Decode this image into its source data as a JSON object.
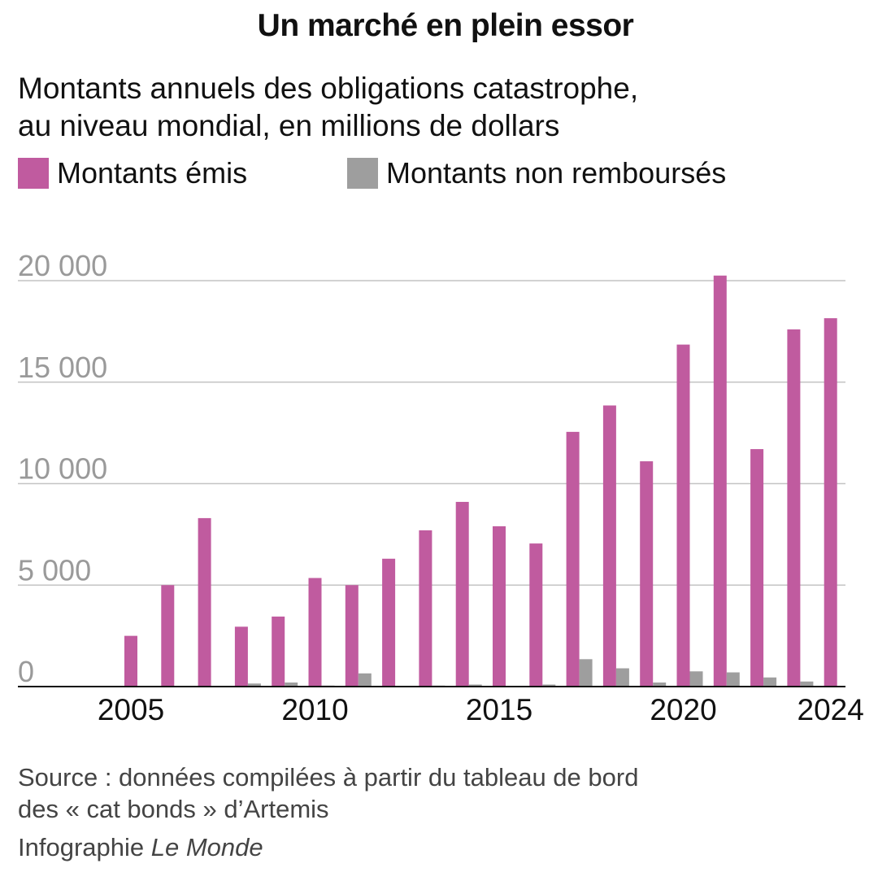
{
  "title": "Un marché en plein essor",
  "subtitle_line1": "Montants annuels des obligations catastrophe,",
  "subtitle_line2": "au niveau mondial, en millions de dollars",
  "source_line1": "Source : données compilées à partir du tableau de bord",
  "source_line2": "des « cat bonds » d’Artemis",
  "credit_prefix": "Infographie",
  "credit_brand": "Le Monde",
  "colors": {
    "issued": "#c05b9f",
    "outstanding": "#9e9e9e",
    "grid": "#c4c4c4",
    "axis": "#111111",
    "ytick": "#9a9a9a"
  },
  "chart_data": {
    "type": "bar",
    "categories": [
      "2004",
      "2005",
      "2006",
      "2007",
      "2008",
      "2009",
      "2010",
      "2011",
      "2012",
      "2013",
      "2014",
      "2015",
      "2016",
      "2017",
      "2018",
      "2019",
      "2020",
      "2021",
      "2022",
      "2023",
      "2024"
    ],
    "x_tick_labels": [
      "2005",
      "2010",
      "2015",
      "2020",
      "2024"
    ],
    "series": [
      {
        "name": "Montants émis",
        "color": "#c05b9f",
        "values": [
          0,
          2500,
          5000,
          8300,
          2950,
          3450,
          5350,
          5000,
          6300,
          7700,
          9100,
          7900,
          7050,
          12550,
          13850,
          11100,
          16850,
          20250,
          11700,
          17600,
          18150
        ]
      },
      {
        "name": "Montants non remboursés",
        "color": "#9e9e9e",
        "values": [
          0,
          0,
          0,
          0,
          150,
          200,
          50,
          650,
          0,
          50,
          100,
          0,
          100,
          1350,
          900,
          200,
          750,
          700,
          450,
          250,
          0
        ]
      }
    ],
    "y_ticks": [
      0,
      5000,
      10000,
      15000,
      20000
    ],
    "y_tick_labels": [
      "0",
      "5 000",
      "10 000",
      "15 000",
      "20 000"
    ],
    "ylim": [
      0,
      20000
    ],
    "grid": true,
    "legend_position": "top-left"
  }
}
